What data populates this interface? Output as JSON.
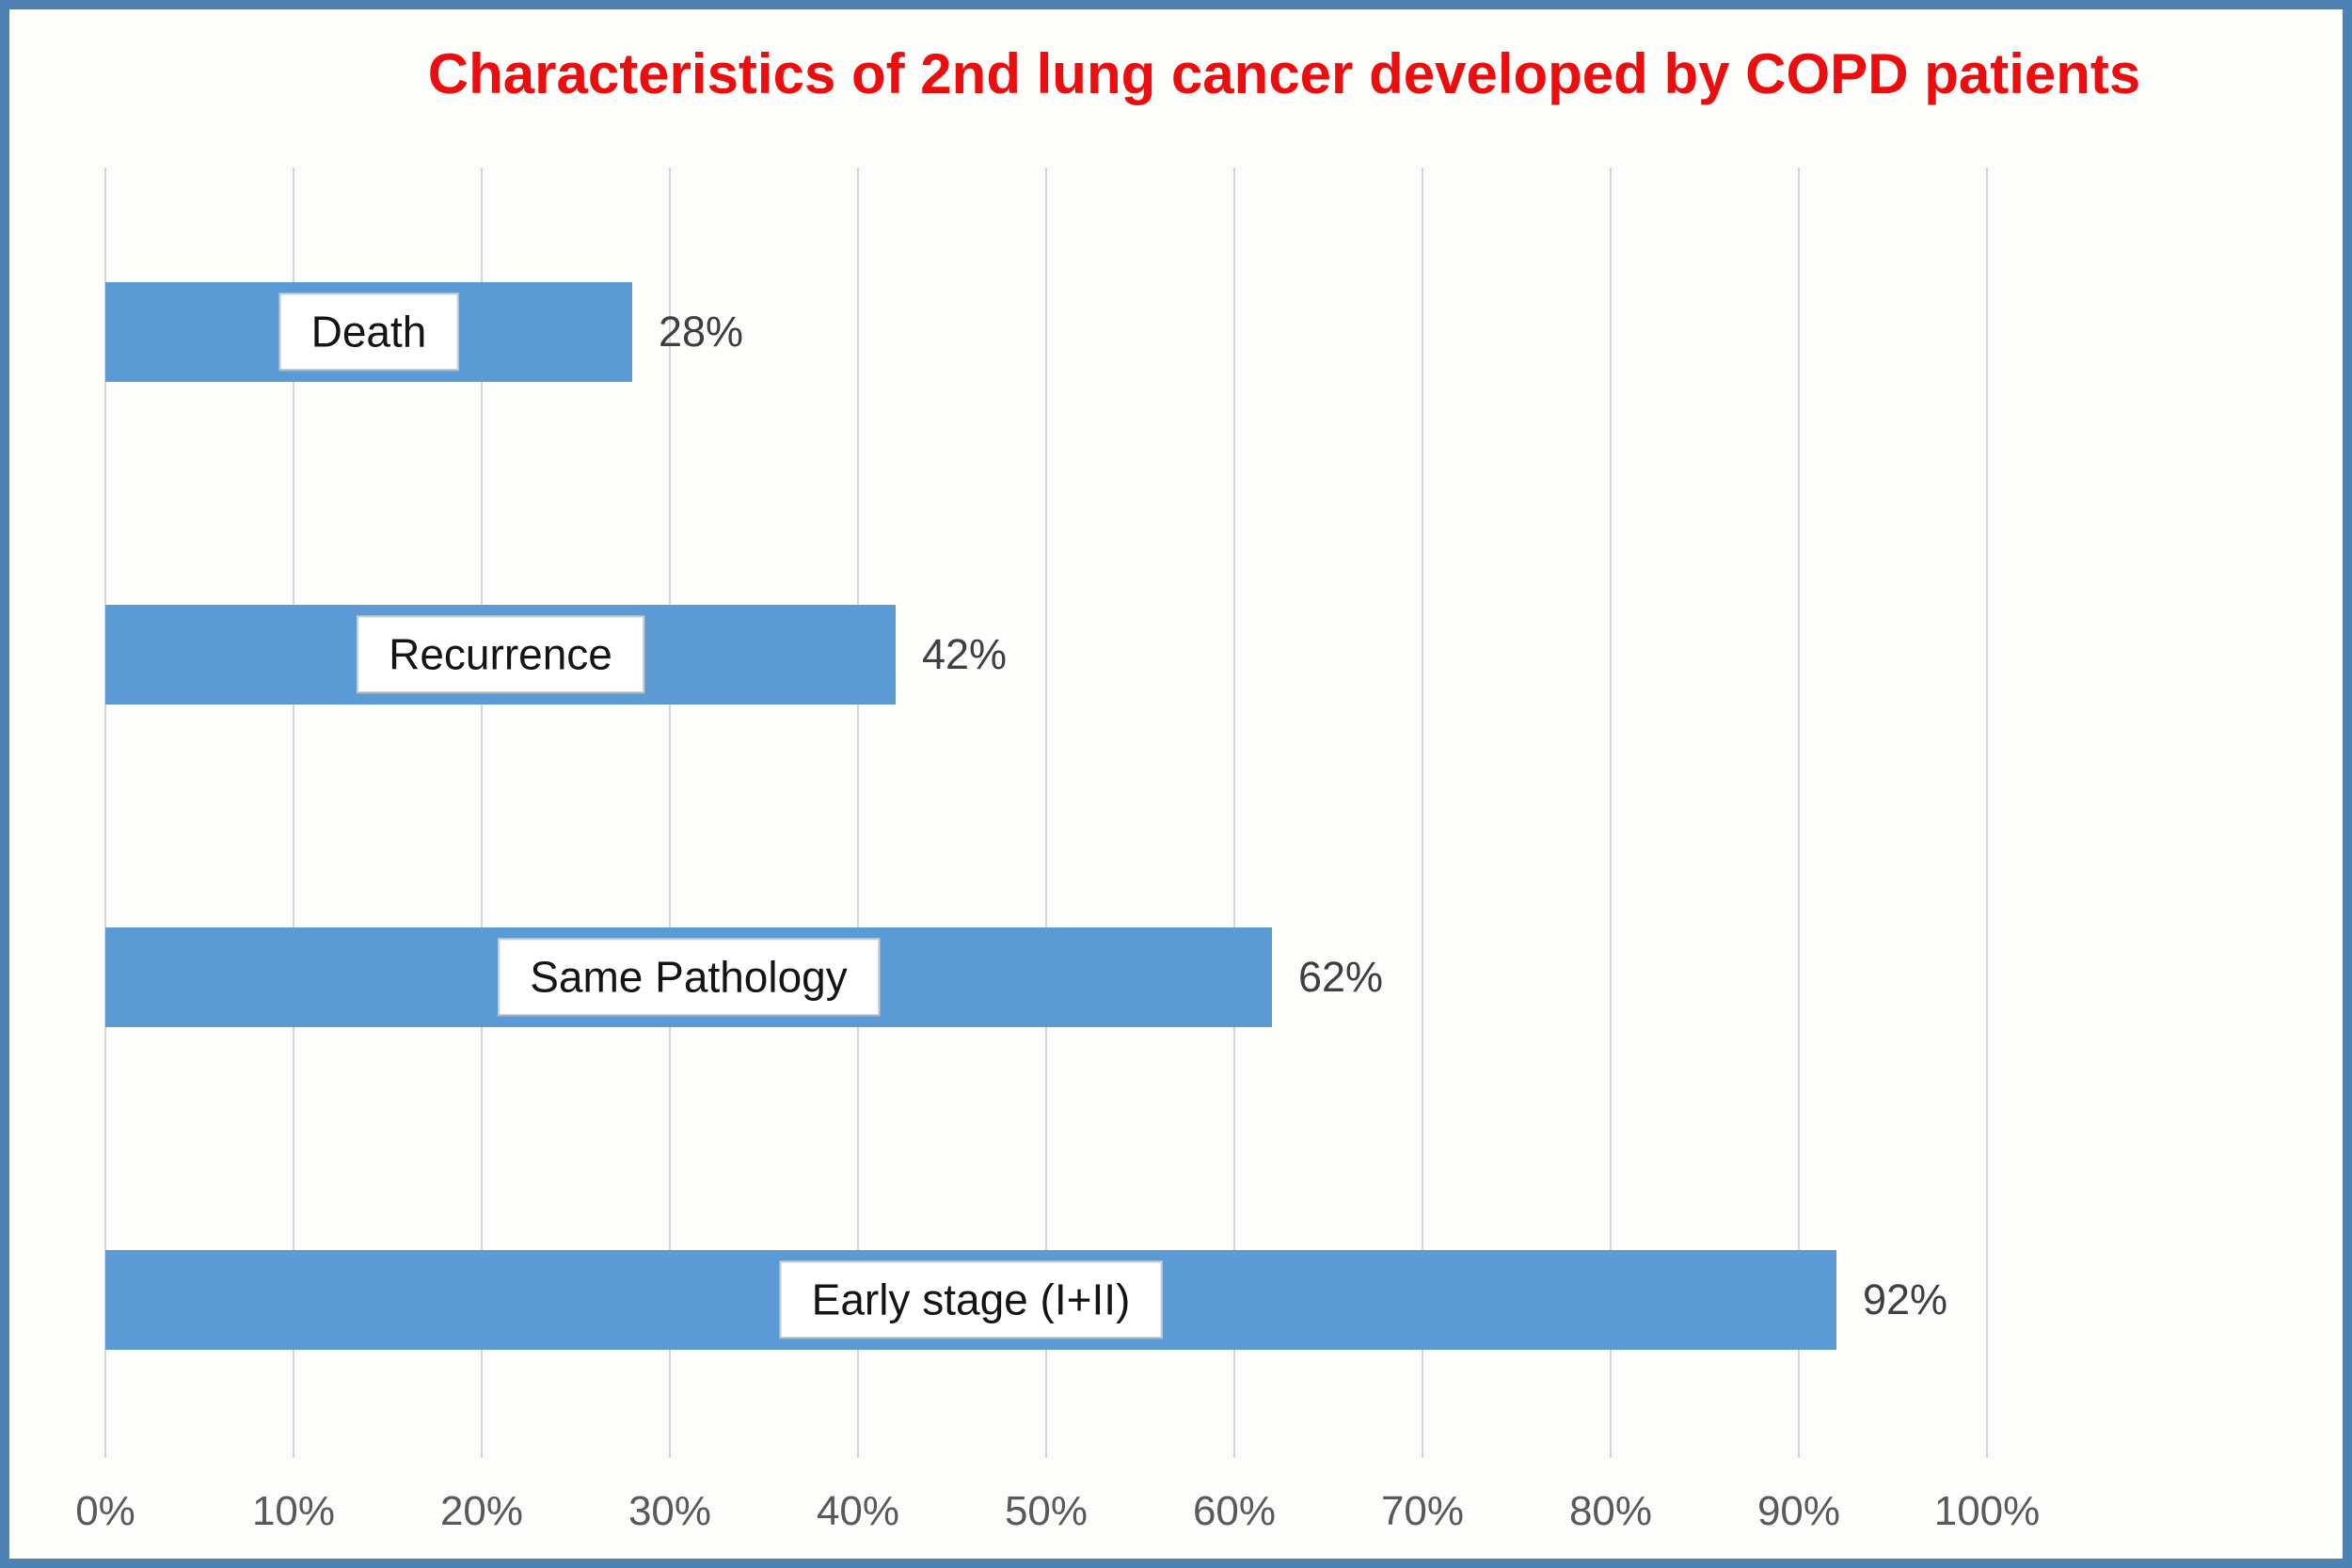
{
  "chart_data": {
    "type": "bar",
    "orientation": "horizontal",
    "title": "Characteristics of 2nd lung cancer developed by COPD patients",
    "categories": [
      "Death",
      "Recurrence",
      "Same Pathology",
      "Early stage (I+II)"
    ],
    "values": [
      28,
      42,
      62,
      92
    ],
    "value_labels": [
      "28%",
      "42%",
      "62%",
      "92%"
    ],
    "x_ticks": [
      "0%",
      "10%",
      "20%",
      "30%",
      "40%",
      "50%",
      "60%",
      "70%",
      "80%",
      "90%",
      "100%"
    ],
    "xlim": [
      0,
      100
    ],
    "grid": true,
    "legend": false,
    "layout_hints": {
      "value_labels_position": "outside-end",
      "category_labels_position": "centered-in-bar"
    },
    "colors": {
      "bar": "#5B9BD5",
      "title": "#EC0E0E",
      "gridline": "#D6D6D6",
      "tick_text": "#595959",
      "value_text": "#3F3F3F",
      "category_text": "#141414",
      "frame_border": "#4D82B5",
      "background": "#FDFDFB",
      "label_box_bg": "#FFFFFF",
      "label_box_border": "#C9CCCF"
    }
  }
}
